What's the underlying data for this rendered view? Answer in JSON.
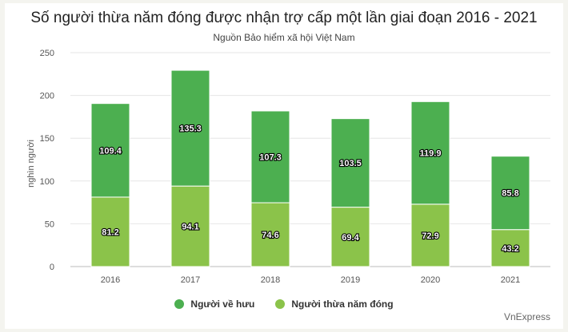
{
  "chart_data": {
    "type": "bar",
    "stacked": true,
    "title": "Số người thừa năm đóng được nhận trợ cấp một lần giai đoạn 2016 - 2021",
    "subtitle": "Nguồn Bảo hiểm xã hội Việt Nam",
    "ylabel": "nghìn người",
    "xlabel": "",
    "categories": [
      "2016",
      "2017",
      "2018",
      "2019",
      "2020",
      "2021"
    ],
    "series": [
      {
        "name": "Người thừa năm đóng",
        "color": "#8bc34a",
        "values": [
          81.2,
          94.1,
          74.6,
          69.4,
          72.9,
          43.2
        ]
      },
      {
        "name": "Người về hưu",
        "color": "#4caf50",
        "values": [
          109.4,
          135.3,
          107.3,
          103.5,
          119.9,
          85.8
        ]
      }
    ],
    "ylim": [
      0,
      250
    ],
    "yticks": [
      "0",
      "50",
      "100",
      "150",
      "200",
      "250"
    ],
    "grid": true,
    "legend_position": "bottom"
  },
  "legend_items": [
    {
      "label": "Người về hưu",
      "color": "#4caf50"
    },
    {
      "label": "Người thừa năm đóng",
      "color": "#8bc34a"
    }
  ],
  "credit": "VnExpress"
}
